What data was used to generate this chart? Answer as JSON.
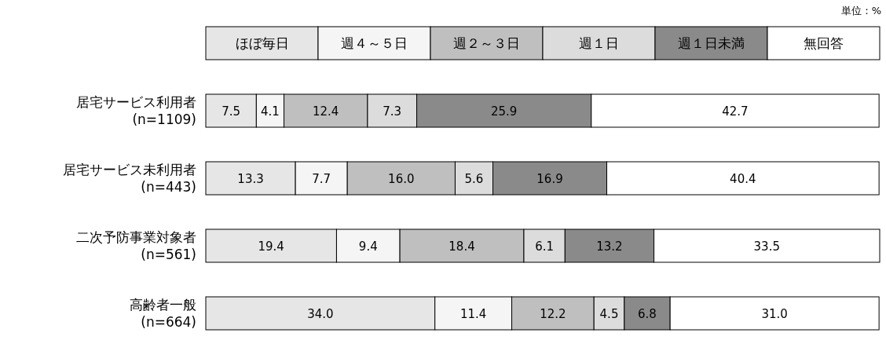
{
  "chart_data": {
    "type": "bar",
    "orientation": "horizontal",
    "stacked": true,
    "legend": "top",
    "xlim": [
      0,
      100
    ],
    "tick_labels": false,
    "annotations": [
      "単位：%"
    ],
    "categories": [
      "居宅サービス利用者\n(n=1109)",
      "居宅サービス未利用者\n(n=443)",
      "二次予防事業対象者\n(n=561)",
      "高齢者一般\n(n=664)"
    ],
    "series": [
      {
        "name": "ほぼ毎日",
        "color": "#e6e6e6",
        "values": [
          7.5,
          13.3,
          19.4,
          34.0
        ],
        "value_labels": [
          "7.5",
          "13.3",
          "19.4",
          "34.0"
        ]
      },
      {
        "name": "週４～５日",
        "color": "#f5f5f5",
        "values": [
          4.1,
          7.7,
          9.4,
          11.4
        ],
        "value_labels": [
          "4.1",
          "7.7",
          "9.4",
          "11.4"
        ]
      },
      {
        "name": "週２～３日",
        "color": "#bfbfbf",
        "values": [
          12.4,
          16.0,
          18.4,
          12.2
        ],
        "value_labels": [
          "12.4",
          "16.0",
          "18.4",
          "12.2"
        ]
      },
      {
        "name": "週１日",
        "color": "#dcdcdc",
        "values": [
          7.3,
          5.6,
          6.1,
          4.5
        ],
        "value_labels": [
          "7.3",
          "5.6",
          "6.1",
          "4.5"
        ]
      },
      {
        "name": "週１日未満",
        "color": "#8a8a8a",
        "values": [
          25.9,
          16.9,
          13.2,
          6.8
        ],
        "value_labels": [
          "25.9",
          "16.9",
          "13.2",
          "6.8"
        ]
      },
      {
        "name": "無回答",
        "color": "#ffffff",
        "values": [
          42.7,
          40.4,
          33.5,
          31.0
        ],
        "value_labels": [
          "42.7",
          "40.4",
          "33.5",
          "31.0"
        ]
      }
    ]
  }
}
